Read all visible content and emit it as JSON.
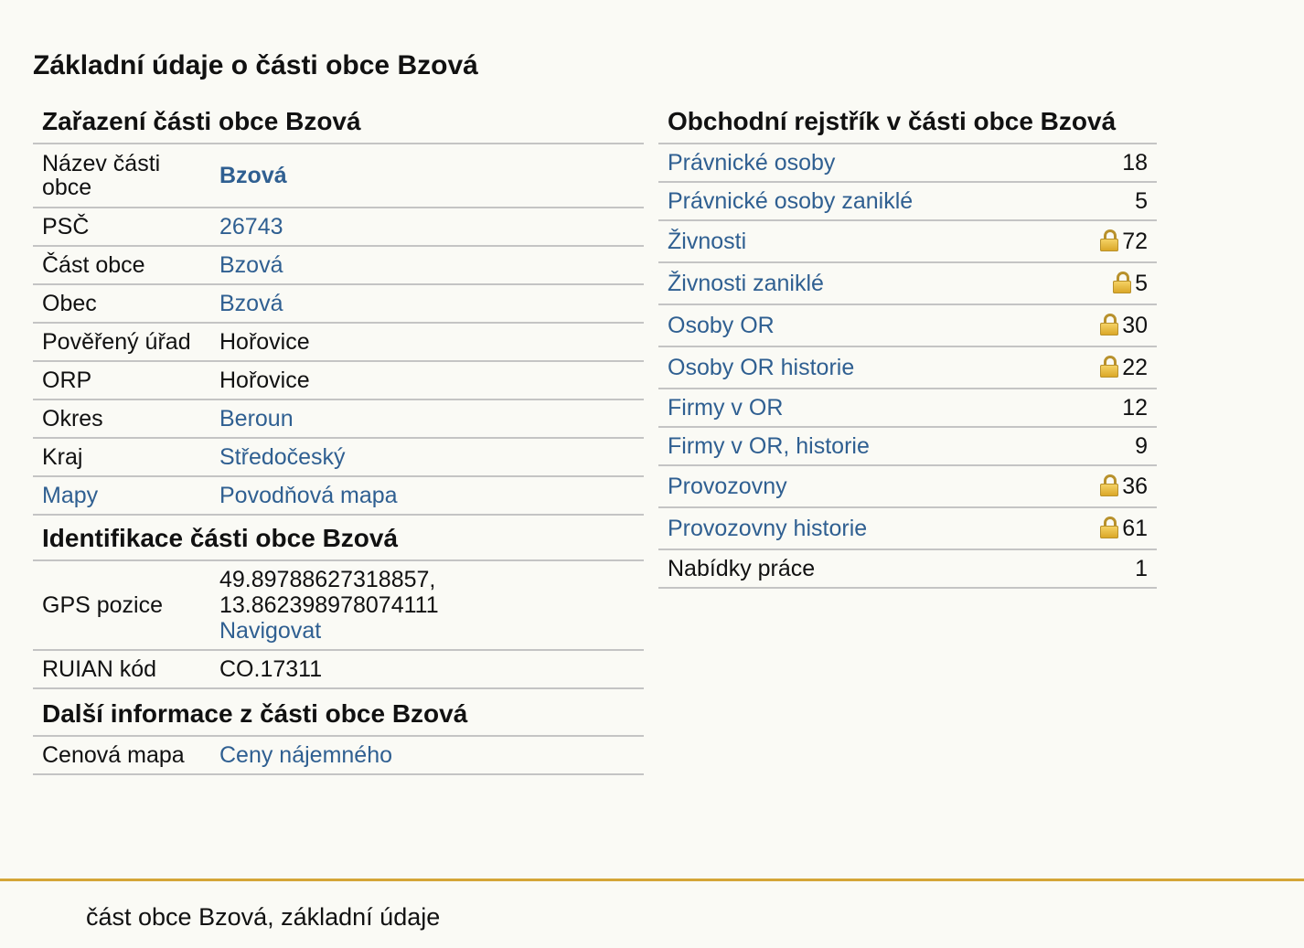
{
  "page_title": "Základní údaje o části obce Bzová",
  "zarazeni": {
    "title": "Zařazení části obce Bzová",
    "rows": [
      {
        "key": "Název části obce",
        "value": "Bzová"
      },
      {
        "key": "PSČ",
        "value": "26743"
      },
      {
        "key": "Část obce",
        "value": "Bzová"
      },
      {
        "key": "Obec",
        "value": "Bzová"
      },
      {
        "key": "Pověřený úřad",
        "value": "Hořovice"
      },
      {
        "key": "ORP",
        "value": "Hořovice"
      },
      {
        "key": "Okres",
        "value": "Beroun"
      },
      {
        "key": "Kraj",
        "value": "Středočeský"
      },
      {
        "key": "Mapy",
        "value": "Povodňová mapa"
      }
    ]
  },
  "identifikace": {
    "title": "Identifikace části obce Bzová",
    "gps_label": "GPS pozice",
    "gps_lat": "49.89788627318857,",
    "gps_lon": "13.862398978074111",
    "gps_link": "Navigovat",
    "ruian_label": "RUIAN kód",
    "ruian_value": "CO.17311"
  },
  "dalsi": {
    "title": "Další informace z části obce Bzová",
    "key": "Cenová mapa",
    "value": "Ceny nájemného"
  },
  "obchodni": {
    "title": "Obchodní rejstřík v části obce Bzová",
    "rows": [
      {
        "label": "Právnické osoby",
        "count": "18",
        "locked": false
      },
      {
        "label": "Právnické osoby zaniklé",
        "count": "5",
        "locked": false
      },
      {
        "label": "Živnosti",
        "count": "72",
        "locked": true
      },
      {
        "label": "Živnosti zaniklé",
        "count": "5",
        "locked": true
      },
      {
        "label": "Osoby OR",
        "count": "30",
        "locked": true
      },
      {
        "label": "Osoby OR historie",
        "count": "22",
        "locked": true
      },
      {
        "label": "Firmy v OR",
        "count": "12",
        "locked": false
      },
      {
        "label": "Firmy v OR, historie",
        "count": "9",
        "locked": false
      },
      {
        "label": "Provozovny",
        "count": "36",
        "locked": true
      },
      {
        "label": "Provozovny historie",
        "count": "61",
        "locked": true
      },
      {
        "label": "Nabídky práce",
        "count": "1",
        "locked": false
      }
    ]
  },
  "footer_text": "část obce Bzová, základní údaje",
  "colors": {
    "link": "#2f5f91",
    "footer_border": "#d4a537",
    "background": "#fafaf5",
    "lock": "#d9a423"
  }
}
